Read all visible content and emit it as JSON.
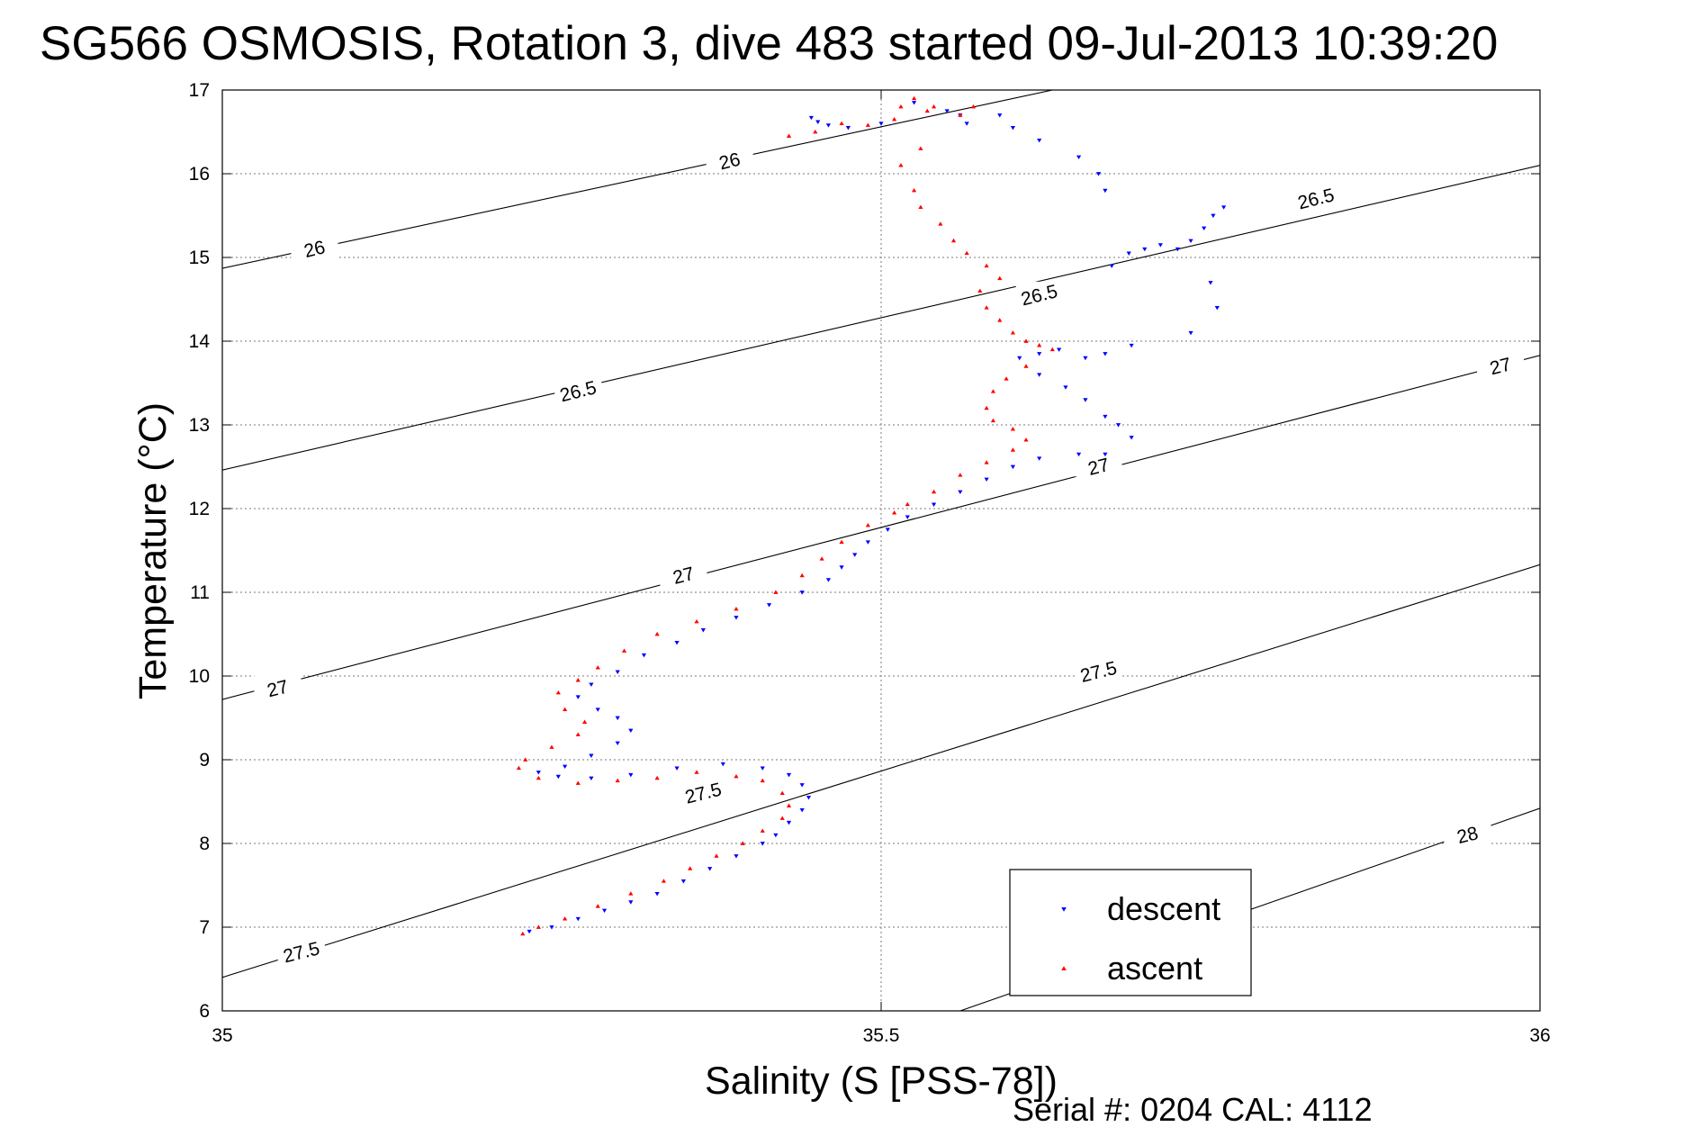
{
  "chart_data": {
    "type": "scatter",
    "title": "SG566 OSMOSIS, Rotation 3, dive 483 started 09-Jul-2013 10:39:20",
    "xlabel": "Salinity (S [PSS-78])",
    "ylabel": "Temperature (°C)",
    "xlim": [
      35,
      36
    ],
    "ylim": [
      6,
      17
    ],
    "x_ticks": [
      35,
      35.5,
      36
    ],
    "x_tick_labels": [
      "35",
      "35.5",
      "36"
    ],
    "y_ticks": [
      6,
      7,
      8,
      9,
      10,
      11,
      12,
      13,
      14,
      15,
      16,
      17
    ],
    "y_tick_labels": [
      "6",
      "7",
      "8",
      "9",
      "10",
      "11",
      "12",
      "13",
      "14",
      "15",
      "16",
      "17"
    ],
    "grid": true,
    "legend_position": "bottom-right",
    "density_contours": [
      {
        "label": "26",
        "points": [
          [
            35,
            14.87
          ],
          [
            35.63,
            17
          ]
        ]
      },
      {
        "label": "26.5",
        "points": [
          [
            35,
            12.46
          ],
          [
            36,
            16.1
          ]
        ]
      },
      {
        "label": "27",
        "points": [
          [
            35,
            9.72
          ],
          [
            36,
            13.83
          ]
        ]
      },
      {
        "label": "27.5",
        "points": [
          [
            35,
            6.4
          ],
          [
            36,
            11.33
          ]
        ]
      },
      {
        "label": "28",
        "points": [
          [
            35.56,
            6
          ],
          [
            36,
            8.42
          ]
        ]
      }
    ],
    "contour_labels": [
      {
        "text": "26",
        "s": 35.07,
        "t": 15.1
      },
      {
        "text": "26",
        "s": 35.385,
        "t": 16.15
      },
      {
        "text": "26.5",
        "s": 35.83,
        "t": 15.7
      },
      {
        "text": "26.5",
        "s": 35.62,
        "t": 14.55
      },
      {
        "text": "26.5",
        "s": 35.27,
        "t": 13.4
      },
      {
        "text": "27",
        "s": 35.97,
        "t": 13.7
      },
      {
        "text": "27",
        "s": 35.665,
        "t": 12.5
      },
      {
        "text": "27",
        "s": 35.35,
        "t": 11.2
      },
      {
        "text": "27",
        "s": 35.042,
        "t": 9.85
      },
      {
        "text": "27.5",
        "s": 35.665,
        "t": 10.05
      },
      {
        "text": "27.5",
        "s": 35.365,
        "t": 8.6
      },
      {
        "text": "27.5",
        "s": 35.06,
        "t": 6.7
      },
      {
        "text": "28",
        "s": 35.945,
        "t": 8.1
      }
    ],
    "series": [
      {
        "name": "descent",
        "color": "#0000ff",
        "marker": "triangle-down",
        "points": [
          [
            35.447,
            16.67
          ],
          [
            35.452,
            16.62
          ],
          [
            35.46,
            16.58
          ],
          [
            35.475,
            16.55
          ],
          [
            35.5,
            16.6
          ],
          [
            35.525,
            16.85
          ],
          [
            35.55,
            16.75
          ],
          [
            35.56,
            16.7
          ],
          [
            35.565,
            16.6
          ],
          [
            35.59,
            16.7
          ],
          [
            35.6,
            16.55
          ],
          [
            35.62,
            16.4
          ],
          [
            35.65,
            16.2
          ],
          [
            35.665,
            16.0
          ],
          [
            35.67,
            15.8
          ],
          [
            35.675,
            14.9
          ],
          [
            35.688,
            15.05
          ],
          [
            35.7,
            15.1
          ],
          [
            35.712,
            15.15
          ],
          [
            35.725,
            15.1
          ],
          [
            35.735,
            15.2
          ],
          [
            35.745,
            15.35
          ],
          [
            35.752,
            15.5
          ],
          [
            35.76,
            15.6
          ],
          [
            35.75,
            14.7
          ],
          [
            35.755,
            14.4
          ],
          [
            35.735,
            14.1
          ],
          [
            35.69,
            13.95
          ],
          [
            35.67,
            13.85
          ],
          [
            35.655,
            13.8
          ],
          [
            35.635,
            13.9
          ],
          [
            35.62,
            13.85
          ],
          [
            35.605,
            13.8
          ],
          [
            35.62,
            13.6
          ],
          [
            35.64,
            13.45
          ],
          [
            35.655,
            13.3
          ],
          [
            35.67,
            13.1
          ],
          [
            35.68,
            13.0
          ],
          [
            35.69,
            12.85
          ],
          [
            35.67,
            12.65
          ],
          [
            35.65,
            12.65
          ],
          [
            35.62,
            12.6
          ],
          [
            35.6,
            12.5
          ],
          [
            35.58,
            12.35
          ],
          [
            35.56,
            12.2
          ],
          [
            35.54,
            12.05
          ],
          [
            35.52,
            11.9
          ],
          [
            35.505,
            11.75
          ],
          [
            35.49,
            11.6
          ],
          [
            35.48,
            11.45
          ],
          [
            35.47,
            11.3
          ],
          [
            35.46,
            11.15
          ],
          [
            35.44,
            11.0
          ],
          [
            35.415,
            10.85
          ],
          [
            35.39,
            10.7
          ],
          [
            35.365,
            10.55
          ],
          [
            35.345,
            10.4
          ],
          [
            35.32,
            10.25
          ],
          [
            35.3,
            10.05
          ],
          [
            35.28,
            9.9
          ],
          [
            35.27,
            9.75
          ],
          [
            35.285,
            9.6
          ],
          [
            35.3,
            9.5
          ],
          [
            35.31,
            9.35
          ],
          [
            35.3,
            9.2
          ],
          [
            35.28,
            9.05
          ],
          [
            35.26,
            8.92
          ],
          [
            35.24,
            8.85
          ],
          [
            35.255,
            8.8
          ],
          [
            35.28,
            8.78
          ],
          [
            35.31,
            8.82
          ],
          [
            35.345,
            8.9
          ],
          [
            35.38,
            8.95
          ],
          [
            35.41,
            8.9
          ],
          [
            35.43,
            8.82
          ],
          [
            35.44,
            8.7
          ],
          [
            35.445,
            8.55
          ],
          [
            35.44,
            8.4
          ],
          [
            35.43,
            8.25
          ],
          [
            35.42,
            8.1
          ],
          [
            35.41,
            8.0
          ],
          [
            35.39,
            7.85
          ],
          [
            35.37,
            7.7
          ],
          [
            35.35,
            7.55
          ],
          [
            35.33,
            7.4
          ],
          [
            35.31,
            7.3
          ],
          [
            35.29,
            7.2
          ],
          [
            35.27,
            7.1
          ],
          [
            35.25,
            7.0
          ],
          [
            35.233,
            6.95
          ]
        ]
      },
      {
        "name": "ascent",
        "color": "#ff0000",
        "marker": "triangle-up",
        "points": [
          [
            35.43,
            16.45
          ],
          [
            35.45,
            16.5
          ],
          [
            35.47,
            16.6
          ],
          [
            35.49,
            16.58
          ],
          [
            35.51,
            16.65
          ],
          [
            35.515,
            16.8
          ],
          [
            35.525,
            16.9
          ],
          [
            35.535,
            16.75
          ],
          [
            35.54,
            16.8
          ],
          [
            35.56,
            16.7
          ],
          [
            35.57,
            16.8
          ],
          [
            35.53,
            16.3
          ],
          [
            35.515,
            16.1
          ],
          [
            35.525,
            15.8
          ],
          [
            35.53,
            15.6
          ],
          [
            35.545,
            15.4
          ],
          [
            35.555,
            15.2
          ],
          [
            35.565,
            15.05
          ],
          [
            35.58,
            14.9
          ],
          [
            35.59,
            14.75
          ],
          [
            35.575,
            14.6
          ],
          [
            35.58,
            14.4
          ],
          [
            35.59,
            14.25
          ],
          [
            35.6,
            14.1
          ],
          [
            35.61,
            14.0
          ],
          [
            35.62,
            13.95
          ],
          [
            35.63,
            13.9
          ],
          [
            35.61,
            13.7
          ],
          [
            35.595,
            13.55
          ],
          [
            35.585,
            13.4
          ],
          [
            35.58,
            13.2
          ],
          [
            35.585,
            13.05
          ],
          [
            35.6,
            12.95
          ],
          [
            35.61,
            12.82
          ],
          [
            35.6,
            12.7
          ],
          [
            35.58,
            12.55
          ],
          [
            35.56,
            12.4
          ],
          [
            35.54,
            12.2
          ],
          [
            35.52,
            12.05
          ],
          [
            35.51,
            11.95
          ],
          [
            35.49,
            11.8
          ],
          [
            35.47,
            11.6
          ],
          [
            35.455,
            11.4
          ],
          [
            35.44,
            11.2
          ],
          [
            35.42,
            11.0
          ],
          [
            35.39,
            10.8
          ],
          [
            35.36,
            10.65
          ],
          [
            35.33,
            10.5
          ],
          [
            35.305,
            10.3
          ],
          [
            35.285,
            10.1
          ],
          [
            35.27,
            9.95
          ],
          [
            35.255,
            9.8
          ],
          [
            35.26,
            9.6
          ],
          [
            35.275,
            9.45
          ],
          [
            35.27,
            9.3
          ],
          [
            35.25,
            9.15
          ],
          [
            35.23,
            9.0
          ],
          [
            35.225,
            8.9
          ],
          [
            35.24,
            8.78
          ],
          [
            35.27,
            8.72
          ],
          [
            35.3,
            8.75
          ],
          [
            35.33,
            8.78
          ],
          [
            35.36,
            8.85
          ],
          [
            35.39,
            8.8
          ],
          [
            35.41,
            8.75
          ],
          [
            35.425,
            8.6
          ],
          [
            35.43,
            8.45
          ],
          [
            35.425,
            8.3
          ],
          [
            35.41,
            8.15
          ],
          [
            35.395,
            8.0
          ],
          [
            35.375,
            7.85
          ],
          [
            35.355,
            7.7
          ],
          [
            35.335,
            7.55
          ],
          [
            35.31,
            7.4
          ],
          [
            35.285,
            7.25
          ],
          [
            35.26,
            7.1
          ],
          [
            35.24,
            7.0
          ],
          [
            35.228,
            6.92
          ]
        ]
      }
    ]
  },
  "serial_text": "Serial #: 0204  CAL: 4112"
}
